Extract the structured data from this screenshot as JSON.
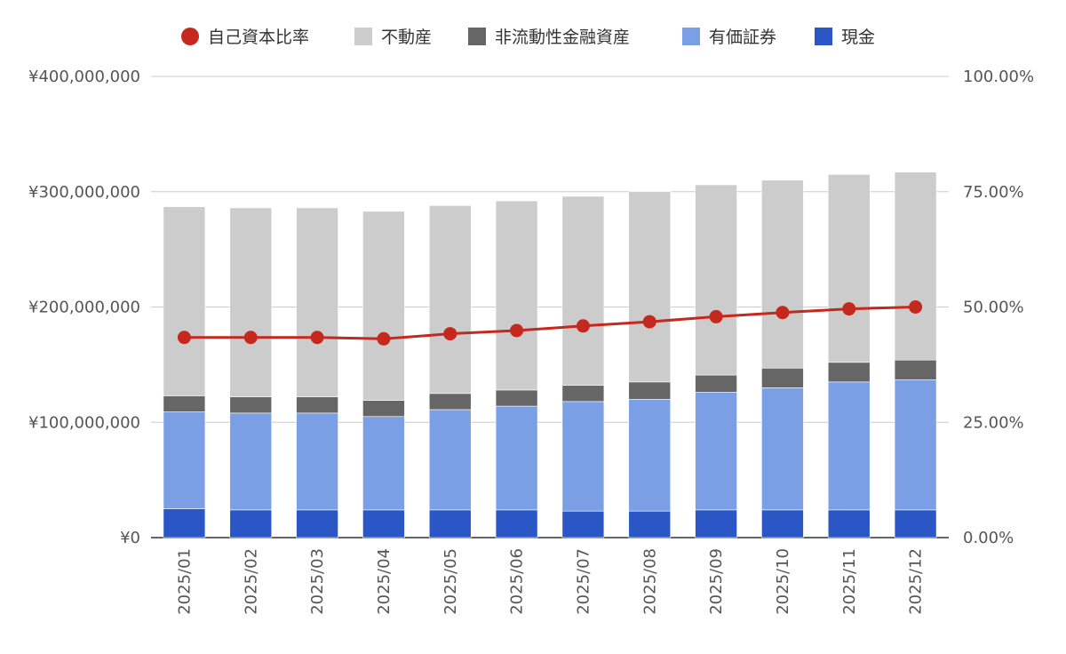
{
  "chart_data": {
    "type": "bar",
    "stacked": true,
    "categories": [
      "2025/01",
      "2025/02",
      "2025/03",
      "2025/04",
      "2025/05",
      "2025/06",
      "2025/07",
      "2025/08",
      "2025/09",
      "2025/10",
      "2025/11",
      "2025/12"
    ],
    "series": [
      {
        "name": "現金",
        "color": "#2a56c6",
        "values": [
          25000000,
          24000000,
          24000000,
          24000000,
          24000000,
          24000000,
          23000000,
          23000000,
          24000000,
          24000000,
          24000000,
          24000000
        ]
      },
      {
        "name": "有価証券",
        "color": "#7b9fe5",
        "values": [
          84000000,
          84000000,
          84000000,
          81000000,
          87000000,
          90000000,
          95000000,
          97000000,
          102000000,
          106000000,
          111000000,
          113000000
        ]
      },
      {
        "name": "非流動性金融資産",
        "color": "#666666",
        "values": [
          14000000,
          14000000,
          14000000,
          14000000,
          14000000,
          14000000,
          14000000,
          15000000,
          15000000,
          17000000,
          17000000,
          17000000
        ]
      },
      {
        "name": "不動産",
        "color": "#cccccc",
        "values": [
          164000000,
          164000000,
          164000000,
          164000000,
          163000000,
          164000000,
          164000000,
          165000000,
          165000000,
          163000000,
          163000000,
          163000000
        ]
      }
    ],
    "line_series": {
      "name": "自己資本比率",
      "color": "#c5281c",
      "values": [
        0.434,
        0.434,
        0.434,
        0.431,
        0.442,
        0.449,
        0.459,
        0.468,
        0.479,
        0.488,
        0.496,
        0.5
      ]
    },
    "legend_order": [
      "自己資本比率",
      "不動産",
      "非流動性金融資産",
      "有価証券",
      "現金"
    ],
    "legend_position": "top",
    "ylim": [
      0,
      400000000
    ],
    "yticks": [
      "¥0",
      "¥100,000,000",
      "¥200,000,000",
      "¥300,000,000",
      "¥400,000,000"
    ],
    "y2lim": [
      0,
      1
    ],
    "y2ticks": [
      "0.00%",
      "25.00%",
      "50.00%",
      "75.00%",
      "100.00%"
    ],
    "grid": true
  }
}
